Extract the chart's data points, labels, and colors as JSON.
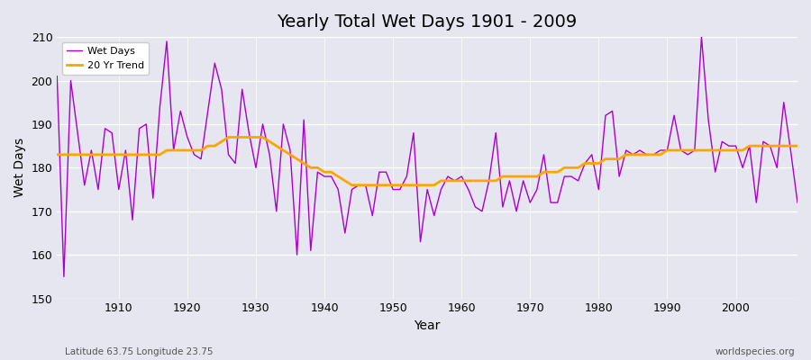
{
  "title": "Yearly Total Wet Days 1901 - 2009",
  "xlabel": "Year",
  "ylabel": "Wet Days",
  "subtitle_left": "Latitude 63.75 Longitude 23.75",
  "subtitle_right": "worldspecies.org",
  "ylim": [
    150,
    210
  ],
  "yticks": [
    150,
    160,
    170,
    180,
    190,
    200,
    210
  ],
  "line_color": "#AA00CC",
  "trend_color": "#FFA500",
  "bg_color": "#E6E6F0",
  "wet_days": [
    201,
    155,
    200,
    188,
    176,
    184,
    175,
    189,
    188,
    175,
    184,
    168,
    189,
    190,
    173,
    194,
    209,
    184,
    193,
    187,
    183,
    182,
    193,
    204,
    198,
    183,
    181,
    198,
    188,
    180,
    190,
    183,
    170,
    190,
    184,
    160,
    191,
    161,
    179,
    178,
    178,
    175,
    165,
    175,
    176,
    176,
    169,
    179,
    179,
    175,
    175,
    178,
    188,
    163,
    175,
    169,
    175,
    178,
    177,
    178,
    175,
    171,
    170,
    177,
    188,
    171,
    177,
    170,
    177,
    172,
    175,
    183,
    172,
    172,
    178,
    178,
    177,
    181,
    183,
    175,
    192,
    193,
    178,
    184,
    183,
    184,
    183,
    183,
    184,
    184,
    192,
    184,
    183,
    184,
    210,
    191,
    179,
    186,
    185,
    185,
    180,
    185,
    172,
    186,
    185,
    180,
    195,
    184,
    172
  ],
  "trend_values": [
    183,
    183,
    183,
    183,
    183,
    183,
    183,
    183,
    183,
    183,
    183,
    183,
    183,
    183,
    183,
    183,
    184,
    184,
    184,
    184,
    184,
    184,
    185,
    185,
    186,
    187,
    187,
    187,
    187,
    187,
    187,
    186,
    185,
    184,
    183,
    182,
    181,
    180,
    180,
    179,
    179,
    178,
    177,
    176,
    176,
    176,
    176,
    176,
    176,
    176,
    176,
    176,
    176,
    176,
    176,
    176,
    177,
    177,
    177,
    177,
    177,
    177,
    177,
    177,
    177,
    178,
    178,
    178,
    178,
    178,
    178,
    179,
    179,
    179,
    180,
    180,
    180,
    181,
    181,
    181,
    182,
    182,
    182,
    183,
    183,
    183,
    183,
    183,
    183,
    184,
    184,
    184,
    184,
    184,
    184,
    184,
    184,
    184,
    184,
    184,
    184,
    185,
    185,
    185,
    185,
    185,
    185,
    185,
    185
  ]
}
